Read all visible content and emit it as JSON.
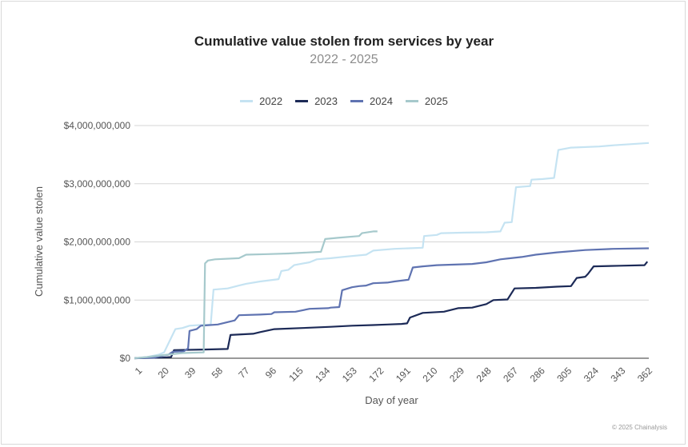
{
  "chart_data": {
    "type": "line",
    "title": "Cumulative value stolen from services by year",
    "subtitle": "2022 - 2025",
    "xlabel": "Day of year",
    "ylabel": "Cumulative value stolen",
    "xlim": [
      1,
      365
    ],
    "ylim": [
      0,
      4000000000
    ],
    "x_ticks": [
      1,
      20,
      39,
      58,
      77,
      96,
      115,
      134,
      153,
      172,
      191,
      210,
      229,
      248,
      267,
      286,
      305,
      324,
      343,
      362
    ],
    "y_ticks": [
      0,
      1000000000,
      2000000000,
      3000000000,
      4000000000
    ],
    "y_tick_labels": [
      "$0",
      "$1,000,000,000",
      "$2,000,000,000",
      "$3,000,000,000",
      "$4,000,000,000"
    ],
    "grid": "horizontal",
    "legend_position": "top-center",
    "series": [
      {
        "name": "2022",
        "color": "#c5e3f2",
        "points": [
          [
            1,
            0
          ],
          [
            10,
            20000000
          ],
          [
            18,
            60000000
          ],
          [
            22,
            100000000
          ],
          [
            30,
            500000000
          ],
          [
            35,
            520000000
          ],
          [
            40,
            560000000
          ],
          [
            47,
            570000000
          ],
          [
            55,
            580000000
          ],
          [
            57,
            1180000000
          ],
          [
            67,
            1200000000
          ],
          [
            75,
            1250000000
          ],
          [
            80,
            1280000000
          ],
          [
            90,
            1320000000
          ],
          [
            103,
            1360000000
          ],
          [
            105,
            1500000000
          ],
          [
            110,
            1520000000
          ],
          [
            114,
            1600000000
          ],
          [
            125,
            1650000000
          ],
          [
            130,
            1700000000
          ],
          [
            140,
            1720000000
          ],
          [
            152,
            1750000000
          ],
          [
            165,
            1780000000
          ],
          [
            170,
            1850000000
          ],
          [
            185,
            1880000000
          ],
          [
            205,
            1900000000
          ],
          [
            206,
            2100000000
          ],
          [
            215,
            2120000000
          ],
          [
            218,
            2150000000
          ],
          [
            235,
            2160000000
          ],
          [
            250,
            2165000000
          ],
          [
            260,
            2180000000
          ],
          [
            263,
            2330000000
          ],
          [
            268,
            2340000000
          ],
          [
            271,
            2940000000
          ],
          [
            281,
            2960000000
          ],
          [
            282,
            3070000000
          ],
          [
            290,
            3080000000
          ],
          [
            298,
            3100000000
          ],
          [
            301,
            3580000000
          ],
          [
            310,
            3620000000
          ],
          [
            330,
            3640000000
          ],
          [
            340,
            3660000000
          ],
          [
            365,
            3700000000
          ]
        ]
      },
      {
        "name": "2023",
        "color": "#1c2a57",
        "points": [
          [
            1,
            0
          ],
          [
            20,
            10000000
          ],
          [
            27,
            20000000
          ],
          [
            29,
            140000000
          ],
          [
            50,
            150000000
          ],
          [
            67,
            160000000
          ],
          [
            69,
            400000000
          ],
          [
            85,
            420000000
          ],
          [
            90,
            450000000
          ],
          [
            100,
            500000000
          ],
          [
            120,
            520000000
          ],
          [
            140,
            540000000
          ],
          [
            155,
            560000000
          ],
          [
            170,
            570000000
          ],
          [
            180,
            580000000
          ],
          [
            190,
            590000000
          ],
          [
            194,
            600000000
          ],
          [
            196,
            700000000
          ],
          [
            205,
            780000000
          ],
          [
            220,
            800000000
          ],
          [
            230,
            860000000
          ],
          [
            240,
            870000000
          ],
          [
            250,
            930000000
          ],
          [
            255,
            1000000000
          ],
          [
            265,
            1010000000
          ],
          [
            270,
            1200000000
          ],
          [
            285,
            1210000000
          ],
          [
            300,
            1230000000
          ],
          [
            310,
            1240000000
          ],
          [
            314,
            1380000000
          ],
          [
            320,
            1400000000
          ],
          [
            322,
            1450000000
          ],
          [
            326,
            1580000000
          ],
          [
            345,
            1590000000
          ],
          [
            362,
            1600000000
          ],
          [
            364,
            1660000000
          ]
        ]
      },
      {
        "name": "2024",
        "color": "#5f73b1",
        "points": [
          [
            1,
            0
          ],
          [
            15,
            10000000
          ],
          [
            20,
            40000000
          ],
          [
            25,
            60000000
          ],
          [
            28,
            110000000
          ],
          [
            36,
            120000000
          ],
          [
            39,
            170000000
          ],
          [
            40,
            470000000
          ],
          [
            45,
            500000000
          ],
          [
            48,
            560000000
          ],
          [
            60,
            580000000
          ],
          [
            72,
            650000000
          ],
          [
            75,
            740000000
          ],
          [
            90,
            750000000
          ],
          [
            98,
            760000000
          ],
          [
            100,
            790000000
          ],
          [
            115,
            800000000
          ],
          [
            125,
            850000000
          ],
          [
            138,
            860000000
          ],
          [
            140,
            870000000
          ],
          [
            146,
            880000000
          ],
          [
            148,
            1170000000
          ],
          [
            155,
            1220000000
          ],
          [
            160,
            1240000000
          ],
          [
            165,
            1250000000
          ],
          [
            170,
            1290000000
          ],
          [
            180,
            1300000000
          ],
          [
            185,
            1320000000
          ],
          [
            195,
            1350000000
          ],
          [
            198,
            1560000000
          ],
          [
            205,
            1580000000
          ],
          [
            215,
            1600000000
          ],
          [
            240,
            1620000000
          ],
          [
            250,
            1650000000
          ],
          [
            260,
            1700000000
          ],
          [
            275,
            1740000000
          ],
          [
            285,
            1780000000
          ],
          [
            300,
            1820000000
          ],
          [
            320,
            1860000000
          ],
          [
            340,
            1880000000
          ],
          [
            365,
            1890000000
          ]
        ]
      },
      {
        "name": "2025",
        "color": "#a6c9cc",
        "points": [
          [
            1,
            0
          ],
          [
            10,
            20000000
          ],
          [
            20,
            50000000
          ],
          [
            35,
            90000000
          ],
          [
            50,
            100000000
          ],
          [
            51,
            1630000000
          ],
          [
            53,
            1680000000
          ],
          [
            58,
            1700000000
          ],
          [
            75,
            1720000000
          ],
          [
            80,
            1780000000
          ],
          [
            95,
            1790000000
          ],
          [
            110,
            1800000000
          ],
          [
            133,
            1830000000
          ],
          [
            136,
            2050000000
          ],
          [
            145,
            2070000000
          ],
          [
            160,
            2100000000
          ],
          [
            162,
            2150000000
          ],
          [
            170,
            2180000000
          ],
          [
            173,
            2180000000
          ]
        ]
      }
    ]
  },
  "copyright": "© 2025 Chainalysis"
}
